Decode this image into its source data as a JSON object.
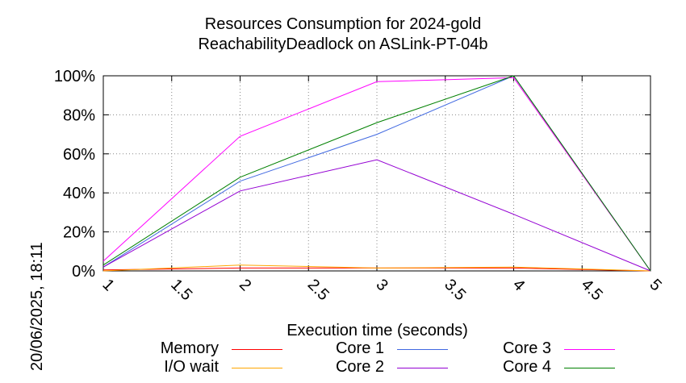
{
  "title_line1": "Resources Consumption for 2024-gold",
  "title_line2": "ReachabilityDeadlock on ASLink-PT-04b",
  "side_stamp": "20/06/2025, 18:11",
  "chart_data": {
    "type": "line",
    "title": "Resources Consumption for 2024-gold ReachabilityDeadlock on ASLink-PT-04b",
    "xlabel": "Execution time (seconds)",
    "ylabel": "",
    "x_ticks": [
      "1",
      "1.5",
      "2",
      "2.5",
      "3",
      "3.5",
      "4",
      "4.5",
      "5"
    ],
    "y_ticks": [
      "0%",
      "20%",
      "40%",
      "60%",
      "80%",
      "100%"
    ],
    "xlim": [
      1,
      5
    ],
    "ylim": [
      0,
      100
    ],
    "grid": true,
    "legend_position": "bottom",
    "series": [
      {
        "name": "Memory",
        "color": "#ff0000",
        "x": [
          1,
          2,
          3,
          4,
          5
        ],
        "values": [
          0.5,
          1.5,
          1.5,
          1.5,
          0
        ]
      },
      {
        "name": "I/O wait",
        "color": "#ffa500",
        "x": [
          1,
          2,
          3,
          4,
          5
        ],
        "values": [
          0,
          3,
          1.5,
          2,
          0
        ]
      },
      {
        "name": "Core 1",
        "color": "#4169e1",
        "x": [
          1,
          2,
          3,
          4,
          5
        ],
        "values": [
          2,
          46,
          70,
          100,
          0
        ]
      },
      {
        "name": "Core 2",
        "color": "#9400d3",
        "x": [
          1,
          2,
          3,
          4,
          5
        ],
        "values": [
          2,
          41,
          57,
          29,
          0
        ]
      },
      {
        "name": "Core 3",
        "color": "#ff00ff",
        "x": [
          1,
          2,
          3,
          4,
          5
        ],
        "values": [
          5,
          69,
          97,
          99,
          0
        ]
      },
      {
        "name": "Core 4",
        "color": "#008000",
        "x": [
          1,
          2,
          3,
          4,
          5
        ],
        "values": [
          3,
          48,
          76,
          100,
          0
        ]
      }
    ]
  }
}
